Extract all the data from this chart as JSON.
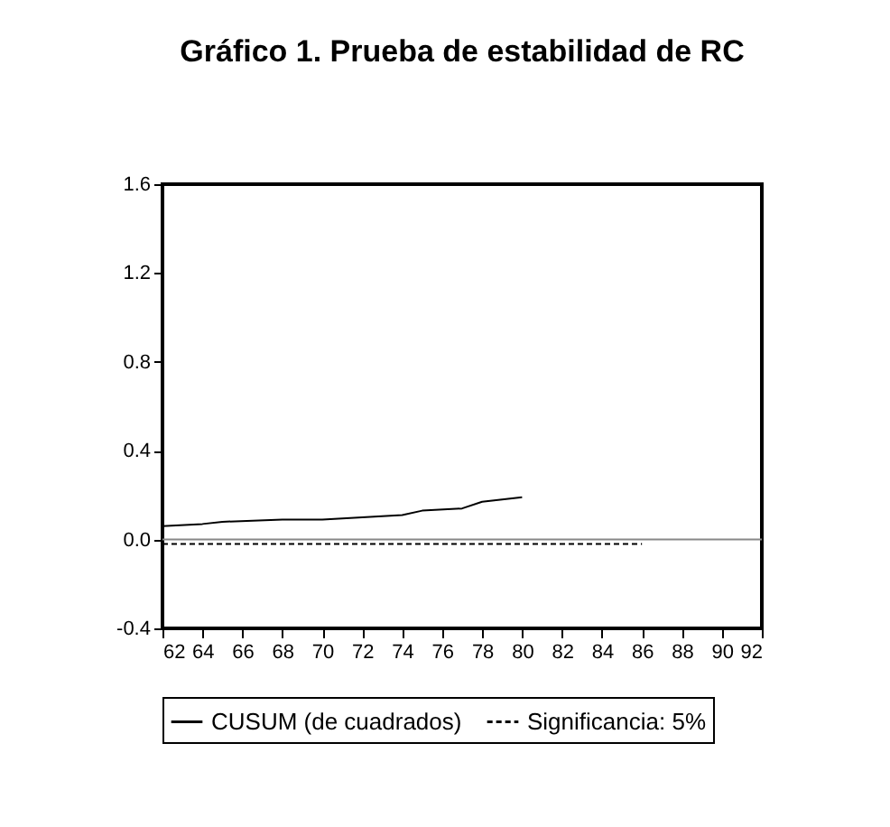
{
  "chart_data": {
    "type": "line",
    "title": "Gráfico 1. Prueba de estabilidad de RC",
    "xlim": [
      62,
      92
    ],
    "xticks": [
      62,
      64,
      66,
      68,
      70,
      72,
      74,
      76,
      78,
      80,
      82,
      84,
      86,
      88,
      90,
      92
    ],
    "ylim": [
      -0.4,
      1.6
    ],
    "yticks": [
      -0.4,
      {
        "value": 0,
        "label": "0.0"
      },
      0.4,
      0.8,
      1.2,
      1.6
    ],
    "grid": false,
    "legend": "bottom",
    "series": [
      {
        "name": "CUSUM (de cuadrados)",
        "color": "#000000",
        "line_style": "solid",
        "x": [
          62,
          64,
          65,
          68,
          70,
          72,
          74,
          75,
          77,
          78,
          79,
          80
        ],
        "values": [
          0.06,
          0.07,
          0.08,
          0.09,
          0.09,
          0.1,
          0.11,
          0.13,
          0.14,
          0.17,
          0.18,
          0.19
        ]
      },
      {
        "name": "Significancia: 5%",
        "color": "#000000",
        "line_style": "dashed",
        "x": [
          62,
          66,
          70,
          74,
          78,
          82,
          86
        ],
        "values": [
          -0.02,
          -0.02,
          -0.02,
          -0.02,
          -0.02,
          -0.02,
          -0.02
        ]
      }
    ],
    "ref_lines": [
      {
        "axis": "y",
        "value": 0,
        "color": "#888888"
      }
    ]
  }
}
